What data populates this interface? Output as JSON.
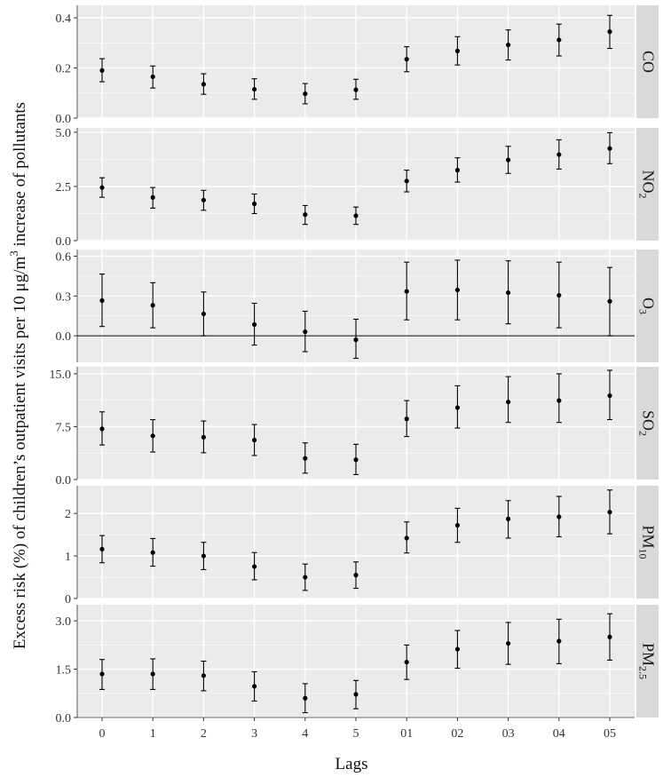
{
  "chart_data": {
    "type": "scatter",
    "style": "faceted point estimates with 95% confidence-interval error bars",
    "xlabel": "Lags",
    "ylabel_parts": [
      "Excess risk (%) of children’s outpatient visits per 10 μg/m",
      "3",
      " increase of pollutants"
    ],
    "categories": [
      "0",
      "1",
      "2",
      "3",
      "4",
      "5",
      "01",
      "02",
      "03",
      "04",
      "05"
    ],
    "colors": {
      "panel_bg": "#ebebeb",
      "grid": "#ffffff",
      "strip_bg": "#d9d9d9",
      "point": "#000000",
      "zero_line": "#000000"
    },
    "panels": [
      {
        "name": "CO",
        "label_base": "CO",
        "label_sub": "",
        "ylim": [
          0,
          0.45
        ],
        "yticks": [
          "0.0",
          "0.2",
          "0.4"
        ],
        "zero_line": false,
        "values": [
          0.19,
          0.165,
          0.135,
          0.115,
          0.097,
          0.113,
          0.235,
          0.268,
          0.292,
          0.312,
          0.345
        ],
        "lower": [
          0.145,
          0.12,
          0.095,
          0.075,
          0.057,
          0.075,
          0.185,
          0.212,
          0.232,
          0.248,
          0.278
        ],
        "upper": [
          0.237,
          0.208,
          0.177,
          0.157,
          0.138,
          0.155,
          0.285,
          0.325,
          0.352,
          0.375,
          0.41
        ]
      },
      {
        "name": "NO2",
        "label_base": "NO",
        "label_sub": "2",
        "ylim": [
          0,
          5.2
        ],
        "yticks": [
          "0.0",
          "2.5",
          "5.0"
        ],
        "zero_line": false,
        "values": [
          2.45,
          1.99,
          1.87,
          1.7,
          1.2,
          1.15,
          2.75,
          3.25,
          3.72,
          3.97,
          4.25
        ],
        "lower": [
          2.0,
          1.5,
          1.4,
          1.25,
          0.75,
          0.75,
          2.25,
          2.7,
          3.1,
          3.3,
          3.55
        ],
        "upper": [
          2.9,
          2.45,
          2.32,
          2.15,
          1.62,
          1.55,
          3.25,
          3.82,
          4.35,
          4.65,
          4.98
        ]
      },
      {
        "name": "O3",
        "label_base": "O",
        "label_sub": "3",
        "ylim": [
          -0.2,
          0.65
        ],
        "yticks": [
          "0.0",
          "0.3",
          "0.6"
        ],
        "zero_line": true,
        "values": [
          0.265,
          0.23,
          0.165,
          0.085,
          0.03,
          -0.03,
          0.335,
          0.345,
          0.325,
          0.305,
          0.26
        ],
        "lower": [
          0.07,
          0.06,
          0.0,
          -0.07,
          -0.12,
          -0.17,
          0.12,
          0.12,
          0.09,
          0.06,
          0.0
        ],
        "upper": [
          0.465,
          0.4,
          0.33,
          0.245,
          0.185,
          0.125,
          0.555,
          0.57,
          0.565,
          0.555,
          0.515
        ]
      },
      {
        "name": "SO2",
        "label_base": "SO",
        "label_sub": "2",
        "ylim": [
          0,
          16
        ],
        "yticks": [
          "0.0",
          "7.5",
          "15.0"
        ],
        "zero_line": false,
        "values": [
          7.2,
          6.2,
          6.0,
          5.6,
          3.0,
          2.8,
          8.6,
          10.2,
          11.0,
          11.2,
          11.9
        ],
        "lower": [
          4.9,
          3.9,
          3.8,
          3.4,
          0.9,
          0.7,
          6.1,
          7.3,
          8.1,
          8.1,
          8.5
        ],
        "upper": [
          9.6,
          8.5,
          8.3,
          7.8,
          5.2,
          5.0,
          11.2,
          13.3,
          14.6,
          15.0,
          15.5
        ]
      },
      {
        "name": "PM10",
        "label_base": "PM",
        "label_sub": "10",
        "ylim": [
          0,
          2.65
        ],
        "yticks": [
          "0",
          "1",
          "2"
        ],
        "zero_line": false,
        "values": [
          1.16,
          1.08,
          1.0,
          0.75,
          0.5,
          0.55,
          1.42,
          1.72,
          1.87,
          1.92,
          2.03
        ],
        "lower": [
          0.84,
          0.76,
          0.68,
          0.44,
          0.19,
          0.24,
          1.07,
          1.32,
          1.42,
          1.45,
          1.52
        ],
        "upper": [
          1.48,
          1.41,
          1.32,
          1.08,
          0.81,
          0.86,
          1.8,
          2.12,
          2.3,
          2.4,
          2.55
        ]
      },
      {
        "name": "PM2.5",
        "label_base": "PM",
        "label_sub": "2.5",
        "ylim": [
          0,
          3.5
        ],
        "yticks": [
          "0.0",
          "1.5",
          "3.0"
        ],
        "zero_line": false,
        "values": [
          1.35,
          1.35,
          1.3,
          0.97,
          0.6,
          0.72,
          1.72,
          2.12,
          2.3,
          2.37,
          2.5
        ],
        "lower": [
          0.87,
          0.87,
          0.83,
          0.51,
          0.15,
          0.27,
          1.18,
          1.53,
          1.65,
          1.67,
          1.78
        ],
        "upper": [
          1.8,
          1.82,
          1.75,
          1.42,
          1.05,
          1.15,
          2.25,
          2.7,
          2.95,
          3.05,
          3.22
        ]
      }
    ]
  }
}
